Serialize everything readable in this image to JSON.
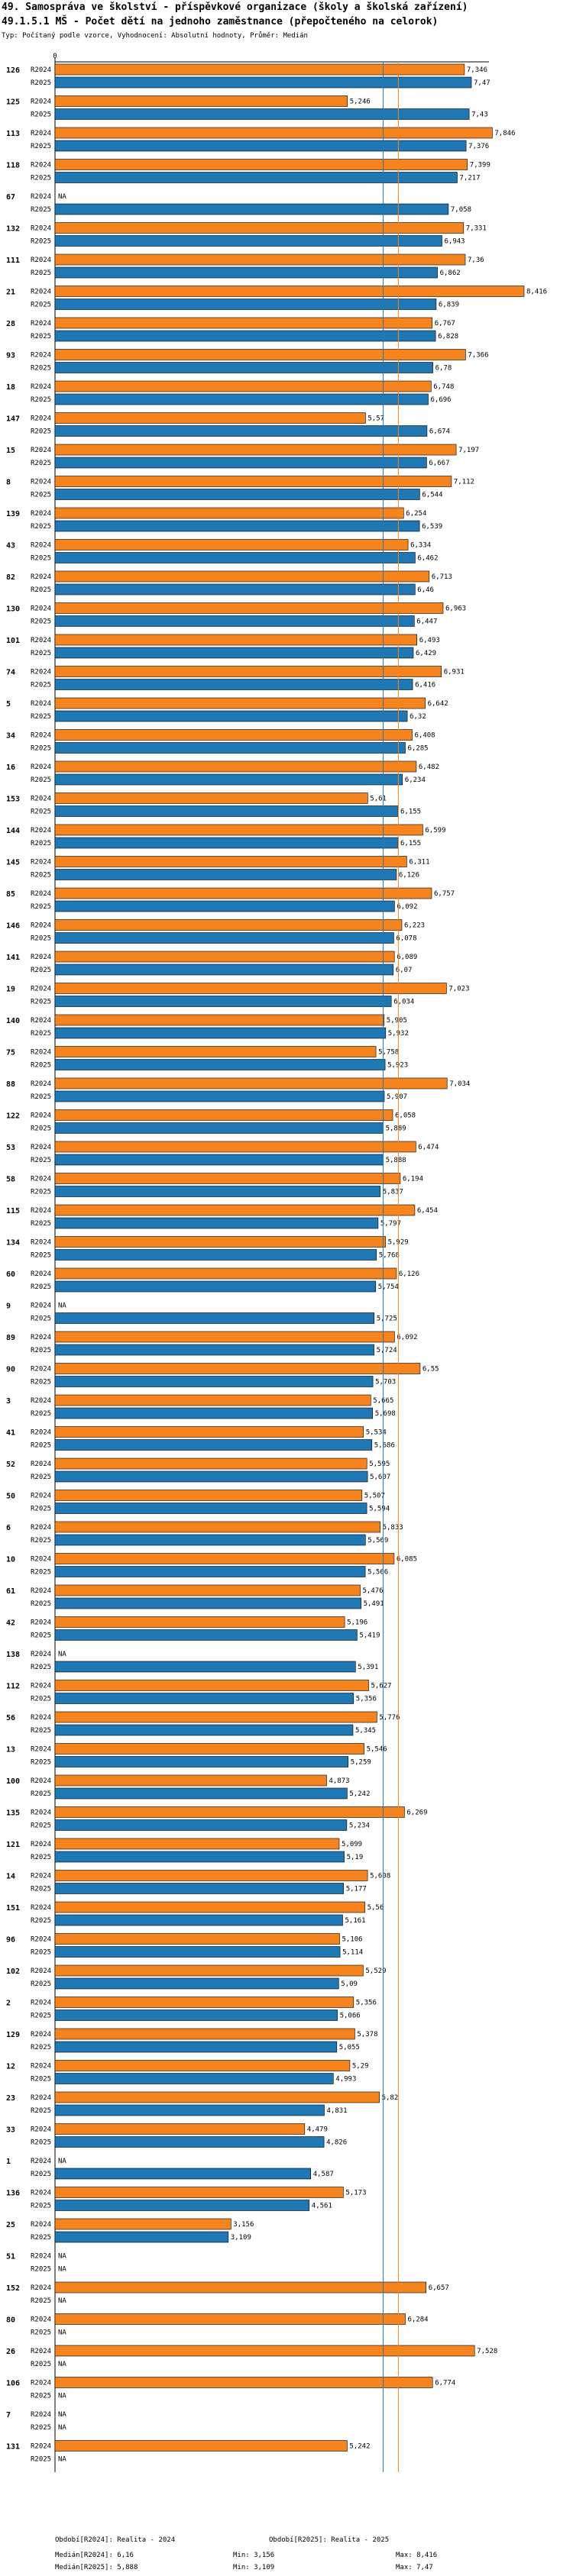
{
  "header": {
    "title1": "49. Samospráva ve školství - příspěvkové organizace (školy a školská zařízení)",
    "title2": "49.1.5.1 MŠ - Počet dětí na jednoho zaměstnance (přepočteného na celorok)",
    "subtitle": "Typ: Počítaný podle vzorce, Vyhodnocení: Absolutní hodnoty, Průměr: Medián"
  },
  "colors": {
    "r2024": "#f5841f",
    "r2025": "#1f78b4",
    "median2024": "#f5841f",
    "median2025": "#1f78b4"
  },
  "chart_data": {
    "type": "bar",
    "orientation": "horizontal",
    "title": "49.1.5.1 MŠ - Počet dětí na jednoho zaměstnance (přepočteného na celorok)",
    "xlim": [
      0,
      8.416
    ],
    "x_tick_labels": [
      "0"
    ],
    "na_label": "NA",
    "series_names": [
      "R2024",
      "R2025"
    ],
    "medians": {
      "R2024": 6.16,
      "R2025": 5.888
    },
    "categories": [
      {
        "id": "126",
        "r2024": 7.346,
        "r2025": 7.47
      },
      {
        "id": "125",
        "r2024": 5.246,
        "r2025": 7.43
      },
      {
        "id": "113",
        "r2024": 7.846,
        "r2025": 7.376
      },
      {
        "id": "118",
        "r2024": 7.399,
        "r2025": 7.217
      },
      {
        "id": "67",
        "r2024": null,
        "r2025": 7.058
      },
      {
        "id": "132",
        "r2024": 7.331,
        "r2025": 6.943
      },
      {
        "id": "111",
        "r2024": 7.36,
        "r2025": 6.862
      },
      {
        "id": "21",
        "r2024": 8.416,
        "r2025": 6.839
      },
      {
        "id": "28",
        "r2024": 6.767,
        "r2025": 6.828
      },
      {
        "id": "93",
        "r2024": 7.366,
        "r2025": 6.78
      },
      {
        "id": "18",
        "r2024": 6.748,
        "r2025": 6.696
      },
      {
        "id": "147",
        "r2024": 5.57,
        "r2025": 6.674
      },
      {
        "id": "15",
        "r2024": 7.197,
        "r2025": 6.667
      },
      {
        "id": "8",
        "r2024": 7.112,
        "r2025": 6.544
      },
      {
        "id": "139",
        "r2024": 6.254,
        "r2025": 6.539
      },
      {
        "id": "43",
        "r2024": 6.334,
        "r2025": 6.462
      },
      {
        "id": "82",
        "r2024": 6.713,
        "r2025": 6.46
      },
      {
        "id": "130",
        "r2024": 6.963,
        "r2025": 6.447
      },
      {
        "id": "101",
        "r2024": 6.493,
        "r2025": 6.429
      },
      {
        "id": "74",
        "r2024": 6.931,
        "r2025": 6.416
      },
      {
        "id": "5",
        "r2024": 6.642,
        "r2025": 6.32
      },
      {
        "id": "34",
        "r2024": 6.408,
        "r2025": 6.285
      },
      {
        "id": "16",
        "r2024": 6.482,
        "r2025": 6.234
      },
      {
        "id": "153",
        "r2024": 5.61,
        "r2025": 6.155
      },
      {
        "id": "144",
        "r2024": 6.599,
        "r2025": 6.155
      },
      {
        "id": "145",
        "r2024": 6.311,
        "r2025": 6.126
      },
      {
        "id": "85",
        "r2024": 6.757,
        "r2025": 6.092
      },
      {
        "id": "146",
        "r2024": 6.223,
        "r2025": 6.078
      },
      {
        "id": "141",
        "r2024": 6.089,
        "r2025": 6.07
      },
      {
        "id": "19",
        "r2024": 7.023,
        "r2025": 6.034
      },
      {
        "id": "140",
        "r2024": 5.905,
        "r2025": 5.932
      },
      {
        "id": "75",
        "r2024": 5.758,
        "r2025": 5.923
      },
      {
        "id": "88",
        "r2024": 7.034,
        "r2025": 5.907
      },
      {
        "id": "122",
        "r2024": 6.058,
        "r2025": 5.889
      },
      {
        "id": "53",
        "r2024": 6.474,
        "r2025": 5.888
      },
      {
        "id": "58",
        "r2024": 6.194,
        "r2025": 5.837
      },
      {
        "id": "115",
        "r2024": 6.454,
        "r2025": 5.797
      },
      {
        "id": "134",
        "r2024": 5.929,
        "r2025": 5.768
      },
      {
        "id": "60",
        "r2024": 6.126,
        "r2025": 5.754
      },
      {
        "id": "9",
        "r2024": null,
        "r2025": 5.725
      },
      {
        "id": "89",
        "r2024": 6.092,
        "r2025": 5.724
      },
      {
        "id": "90",
        "r2024": 6.55,
        "r2025": 5.703
      },
      {
        "id": "3",
        "r2024": 5.665,
        "r2025": 5.698
      },
      {
        "id": "41",
        "r2024": 5.534,
        "r2025": 5.686
      },
      {
        "id": "52",
        "r2024": 5.595,
        "r2025": 5.607
      },
      {
        "id": "50",
        "r2024": 5.507,
        "r2025": 5.594
      },
      {
        "id": "6",
        "r2024": 5.833,
        "r2025": 5.569
      },
      {
        "id": "10",
        "r2024": 6.085,
        "r2025": 5.566
      },
      {
        "id": "61",
        "r2024": 5.476,
        "r2025": 5.491
      },
      {
        "id": "42",
        "r2024": 5.196,
        "r2025": 5.419
      },
      {
        "id": "138",
        "r2024": null,
        "r2025": 5.391
      },
      {
        "id": "112",
        "r2024": 5.627,
        "r2025": 5.356
      },
      {
        "id": "56",
        "r2024": 5.776,
        "r2025": 5.345
      },
      {
        "id": "13",
        "r2024": 5.546,
        "r2025": 5.259
      },
      {
        "id": "100",
        "r2024": 4.873,
        "r2025": 5.242
      },
      {
        "id": "135",
        "r2024": 6.269,
        "r2025": 5.234
      },
      {
        "id": "121",
        "r2024": 5.099,
        "r2025": 5.19
      },
      {
        "id": "14",
        "r2024": 5.608,
        "r2025": 5.177
      },
      {
        "id": "151",
        "r2024": 5.56,
        "r2025": 5.161
      },
      {
        "id": "96",
        "r2024": 5.106,
        "r2025": 5.114
      },
      {
        "id": "102",
        "r2024": 5.529,
        "r2025": 5.09
      },
      {
        "id": "2",
        "r2024": 5.356,
        "r2025": 5.066
      },
      {
        "id": "129",
        "r2024": 5.378,
        "r2025": 5.055
      },
      {
        "id": "12",
        "r2024": 5.29,
        "r2025": 4.993
      },
      {
        "id": "23",
        "r2024": 5.82,
        "r2025": 4.831
      },
      {
        "id": "33",
        "r2024": 4.479,
        "r2025": 4.826
      },
      {
        "id": "1",
        "r2024": null,
        "r2025": 4.587
      },
      {
        "id": "136",
        "r2024": 5.173,
        "r2025": 4.561
      },
      {
        "id": "25",
        "r2024": 3.156,
        "r2025": 3.109
      },
      {
        "id": "51",
        "r2024": null,
        "r2025": null
      },
      {
        "id": "152",
        "r2024": 6.657,
        "r2025": null
      },
      {
        "id": "80",
        "r2024": 6.284,
        "r2025": null
      },
      {
        "id": "26",
        "r2024": 7.528,
        "r2025": null
      },
      {
        "id": "106",
        "r2024": 6.774,
        "r2025": null
      },
      {
        "id": "7",
        "r2024": null,
        "r2025": null
      },
      {
        "id": "131",
        "r2024": 5.242,
        "r2025": null
      }
    ]
  },
  "footer": {
    "period2024": "Období[R2024]: Realita - 2024",
    "period2025": "Období[R2025]: Realita - 2025",
    "median2024": "Medián[R2024]: 6,16",
    "median2025": "Medián[R2025]: 5,888",
    "min1": "Min: 3,156",
    "min2": "Min: 3,109",
    "max1": "Max: 8,416",
    "max2": "Max: 7,47"
  }
}
